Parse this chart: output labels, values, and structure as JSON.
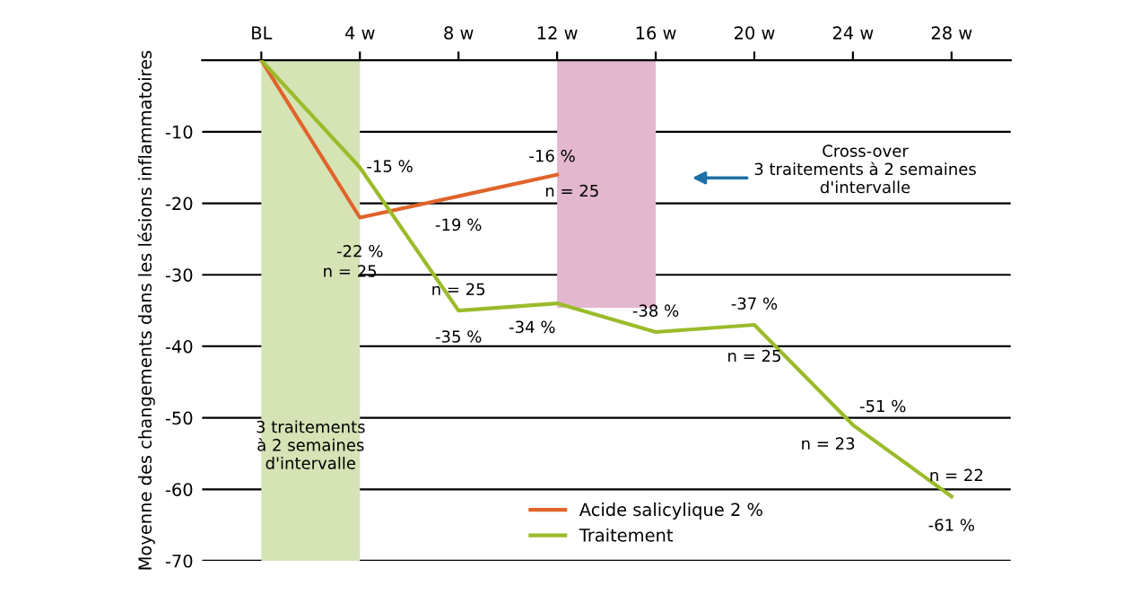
{
  "chart_data": {
    "type": "line",
    "ylabel": "Moyenne des changements dans les lésions inflammatoires",
    "xlim": [
      -2.4,
      30.4
    ],
    "xticks": [
      {
        "value": 0,
        "label": "BL"
      },
      {
        "value": 4,
        "label": "4 w"
      },
      {
        "value": 8,
        "label": "8 w"
      },
      {
        "value": 12,
        "label": "12 w"
      },
      {
        "value": 16,
        "label": "16 w"
      },
      {
        "value": 20,
        "label": "20 w"
      },
      {
        "value": 24,
        "label": "24 w"
      },
      {
        "value": 28,
        "label": "28 w"
      }
    ],
    "ylim": [
      -70,
      0
    ],
    "yticks": [
      -70,
      -60,
      -50,
      -40,
      -30,
      -20,
      -10
    ],
    "grid": "y",
    "legend": "bottom",
    "marker": "none",
    "line_style": "solid",
    "series": [
      {
        "name": "Acide salicylique 2 %",
        "color": "#e0642a",
        "x": [
          0,
          4,
          8,
          12
        ],
        "values": [
          0,
          -22,
          -19,
          -16
        ],
        "value_labels": [
          null,
          "-22 %",
          "-19 %",
          "-16 %"
        ]
      },
      {
        "name": "Traitement",
        "color": "#9bbb2a",
        "x": [
          0,
          4,
          8,
          12,
          16,
          20,
          24,
          28
        ],
        "values": [
          0,
          -15,
          -35,
          -34,
          -38,
          -37,
          -51,
          -61
        ],
        "value_labels": [
          null,
          "-15 %",
          "-35 %",
          "-34 %",
          "-38 %",
          "-37 %",
          "-51 %",
          "-61 %"
        ]
      }
    ],
    "bands": [
      {
        "axis": "x",
        "from": 0,
        "to": 4,
        "label": "3 traitements\nà 2 semaines\nd'intervalle",
        "color": "#d5e3b5"
      },
      {
        "axis": "x",
        "from": 12,
        "to": 16,
        "color": "#e3b8ce"
      }
    ],
    "annotations": [
      {
        "text": "n = 25",
        "x": 4,
        "y": -22
      },
      {
        "text": "n = 25",
        "x": 12,
        "y": -16
      },
      {
        "text": "n = 25",
        "x": 8,
        "y": -35
      },
      {
        "text": "n = 25",
        "x": 20,
        "y": -37
      },
      {
        "text": "n = 23",
        "x": 24,
        "y": -51
      },
      {
        "text": "n = 22",
        "x": 28,
        "y": -61
      },
      "Cross-over\n3 traitements à 2 semaines\nd'intervalle"
    ]
  }
}
